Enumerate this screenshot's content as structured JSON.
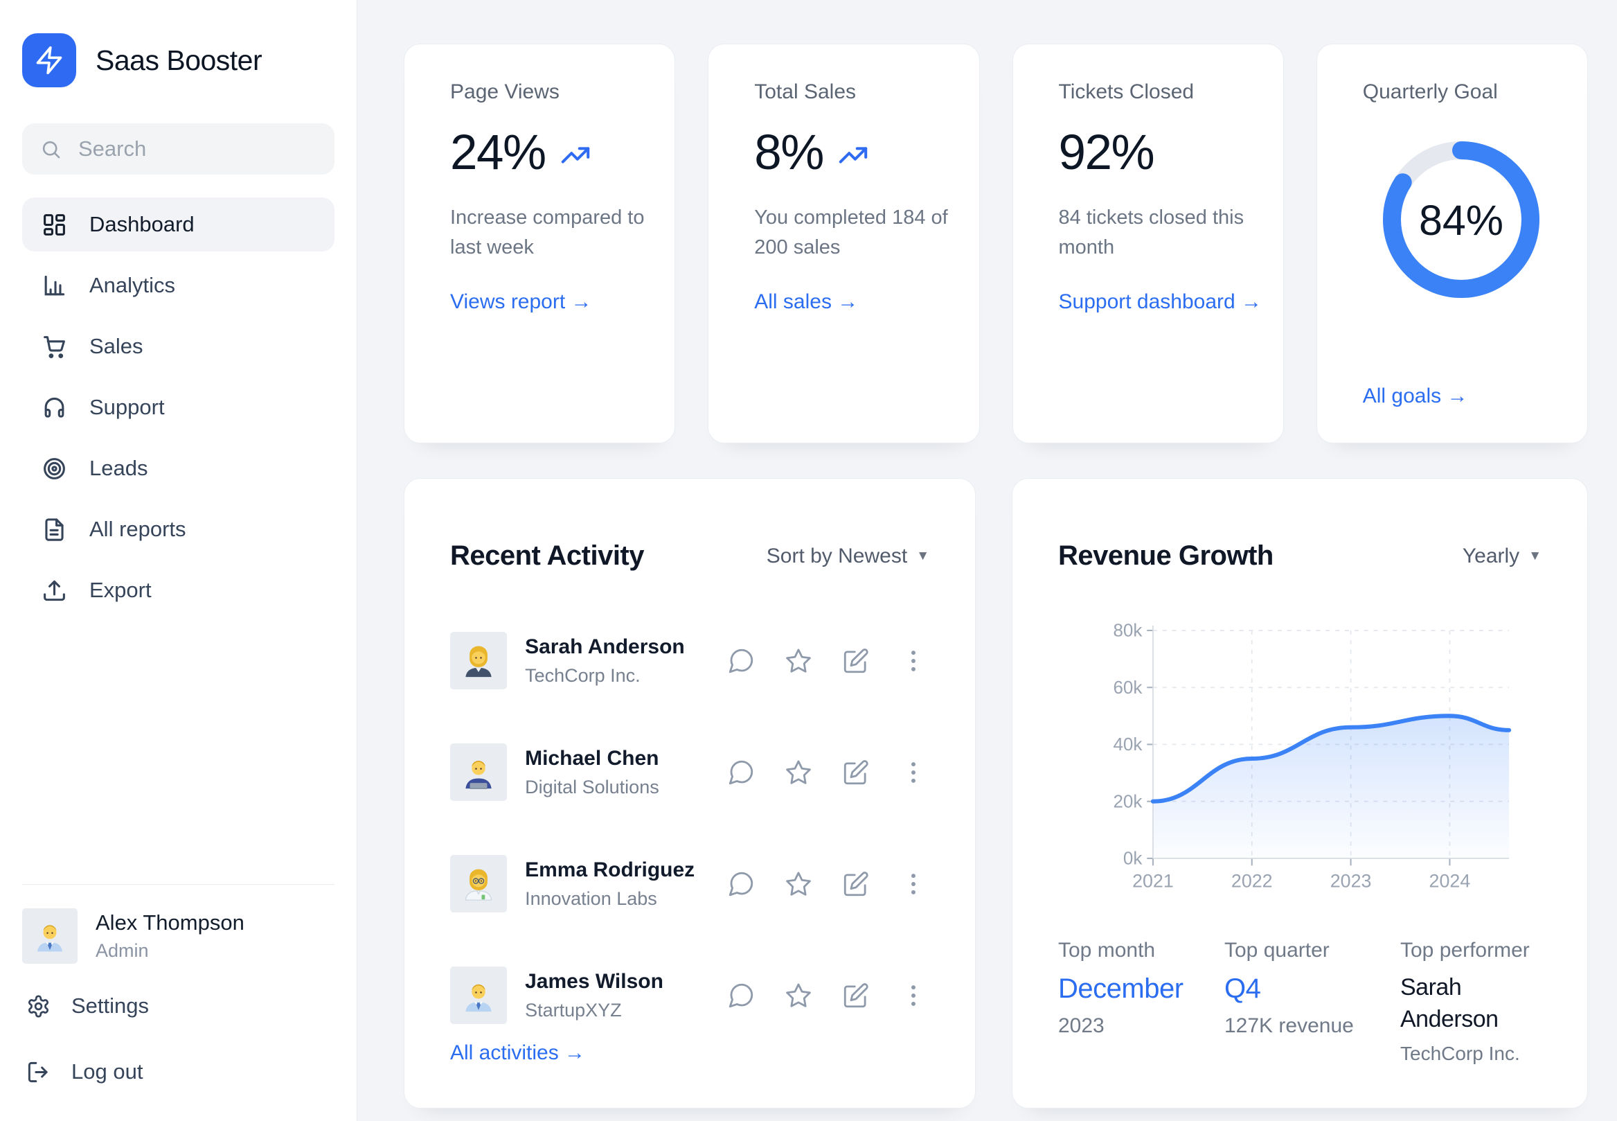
{
  "app": {
    "brand": "Saas Booster"
  },
  "sidebar": {
    "search": {
      "placeholder": "Search"
    },
    "nav": [
      {
        "label": "Dashboard",
        "icon": "dashboard-icon",
        "active": true
      },
      {
        "label": "Analytics",
        "icon": "bar-chart-icon",
        "active": false
      },
      {
        "label": "Sales",
        "icon": "cart-icon",
        "active": false
      },
      {
        "label": "Support",
        "icon": "headphones-icon",
        "active": false
      },
      {
        "label": "Leads",
        "icon": "target-icon",
        "active": false
      },
      {
        "label": "All reports",
        "icon": "document-icon",
        "active": false
      },
      {
        "label": "Export",
        "icon": "upload-icon",
        "active": false
      }
    ],
    "user": {
      "name": "Alex Thompson",
      "role": "Admin",
      "avatar": "man-office-worker-emoji"
    },
    "footer": [
      {
        "label": "Settings",
        "icon": "gear-icon"
      },
      {
        "label": "Log out",
        "icon": "logout-icon"
      }
    ]
  },
  "stats": [
    {
      "title": "Page Views",
      "value": "24%",
      "trend": "up",
      "description": "Increase compared to last week",
      "link": "Views report →"
    },
    {
      "title": "Total Sales",
      "value": "8%",
      "trend": "up",
      "description": "You completed 184 of 200 sales",
      "link": "All sales →"
    },
    {
      "title": "Tickets Closed",
      "value": "92%",
      "trend": "none",
      "description": "84 tickets closed this month",
      "link": "Support dashboard →"
    },
    {
      "title": "Quarterly Goal",
      "value": "84%",
      "percent": 84,
      "link": "All goals →"
    }
  ],
  "activity": {
    "title": "Recent Activity",
    "sort_label": "Sort by Newest",
    "sort_caret": "▼",
    "rows": [
      {
        "name": "Sarah Anderson",
        "company": "TechCorp Inc.",
        "avatar": "woman-office-worker-emoji"
      },
      {
        "name": "Michael Chen",
        "company": "Digital Solutions",
        "avatar": "man-technologist-emoji"
      },
      {
        "name": "Emma Rodriguez",
        "company": "Innovation Labs",
        "avatar": "woman-scientist-emoji"
      },
      {
        "name": "James Wilson",
        "company": "StartupXYZ",
        "avatar": "man-office-worker-emoji"
      }
    ],
    "row_actions": [
      "comment-icon",
      "star-icon",
      "edit-icon",
      "more-icon"
    ],
    "link": "All activities →"
  },
  "revenue": {
    "title": "Revenue Growth",
    "filter_label": "Yearly",
    "filter_caret": "▼",
    "highlights": [
      {
        "label": "Top month",
        "value": "December",
        "sub": "2023"
      },
      {
        "label": "Top quarter",
        "value": "Q4",
        "sub": "127K revenue"
      },
      {
        "label": "Top performer",
        "value": "Sarah Anderson",
        "sub": "TechCorp Inc."
      }
    ]
  },
  "chart_data": [
    {
      "type": "area",
      "title": "Revenue Growth",
      "x": [
        2021,
        2022,
        2023,
        2024,
        2024.6
      ],
      "values": [
        20000,
        35000,
        46000,
        50000,
        45000
      ],
      "x_tick_values": [
        2021,
        2022,
        2023,
        2024
      ],
      "x_ticks": [
        "2021",
        "2022",
        "2023",
        "2024"
      ],
      "y_tick_values": [
        0,
        20000,
        40000,
        60000,
        80000
      ],
      "y_ticks": [
        "0k",
        "20k",
        "40k",
        "60k",
        "80k"
      ],
      "ylim": [
        0,
        80000
      ],
      "grid": "dashed",
      "legend": "none",
      "line_color": "#3b82f6",
      "fill": "light-blue-gradient"
    },
    {
      "type": "donut",
      "title": "Quarterly Goal",
      "values": [
        84,
        16
      ],
      "labels": [
        "complete",
        "remaining"
      ],
      "center_label": "84%",
      "colors": [
        "#3b82f6",
        "#e5e8ee"
      ]
    }
  ],
  "colors": {
    "accent_blue": "#2e6bf2",
    "chart_blue": "#3b82f6",
    "page_bg": "#f2f4f7",
    "card_bg": "#ffffff",
    "donut_track": "#e5e8ee"
  }
}
